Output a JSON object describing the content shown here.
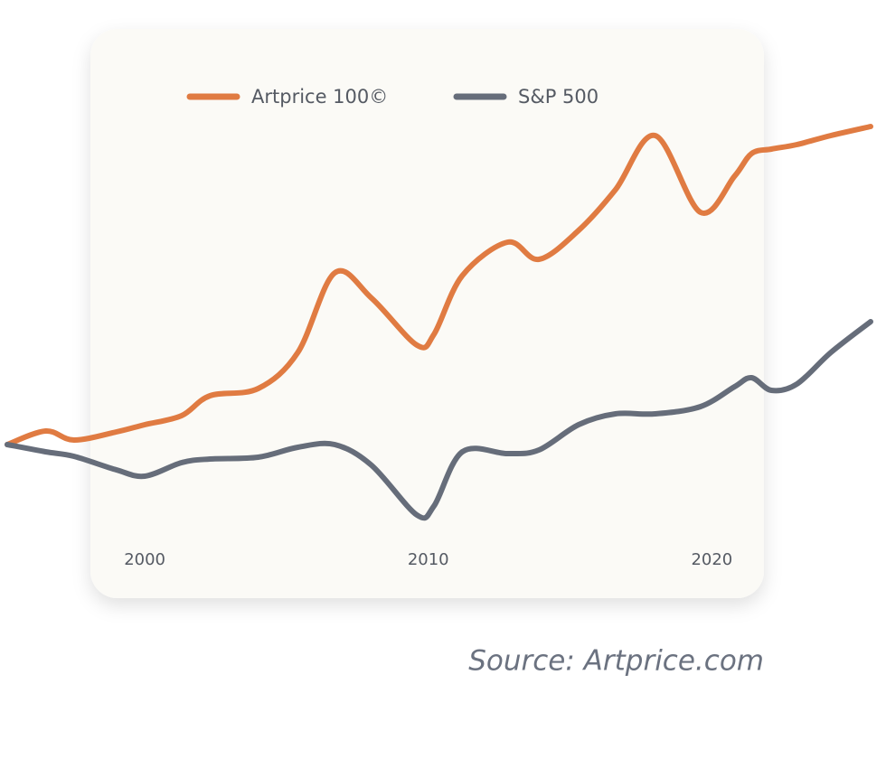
{
  "chart_data": {
    "type": "line",
    "x": [
      1995.15,
      1996.5,
      1997.5,
      1999,
      2000,
      2001.3,
      2002.3,
      2004,
      2005.4,
      2006.7,
      2008,
      2009.6,
      2010.2,
      2011.2,
      2012.8,
      2013.9,
      2015.3,
      2016.6,
      2018,
      2019.6,
      2020.8,
      2021.4,
      2022.1,
      2023,
      2024.2,
      2025.6
    ],
    "series": [
      {
        "name": "Artprice 100©",
        "color": "#e07b42",
        "values": [
          32,
          35.75,
          33.25,
          35.5,
          37.5,
          40,
          45.5,
          47.5,
          57.5,
          79.5,
          72.5,
          59.5,
          62.5,
          78.75,
          88,
          83.25,
          91.25,
          102.5,
          117.5,
          96.25,
          106.25,
          112.5,
          113.75,
          115,
          117.5,
          120
        ]
      },
      {
        "name": "S&P 500",
        "color": "#666d7a",
        "values": [
          32,
          30,
          28.75,
          25,
          23.25,
          27,
          28,
          28.5,
          31.25,
          32,
          26.25,
          12.5,
          15,
          30,
          29.5,
          30.5,
          37.5,
          40.5,
          40.5,
          42.5,
          48,
          50.5,
          47,
          48.75,
          57.5,
          66
        ]
      }
    ],
    "xlim": [
      1995.15,
      2025.6
    ],
    "xticks": [
      2000,
      2010,
      2020
    ],
    "ylim": [
      0,
      155
    ],
    "source": "Source: Artprice.com"
  }
}
